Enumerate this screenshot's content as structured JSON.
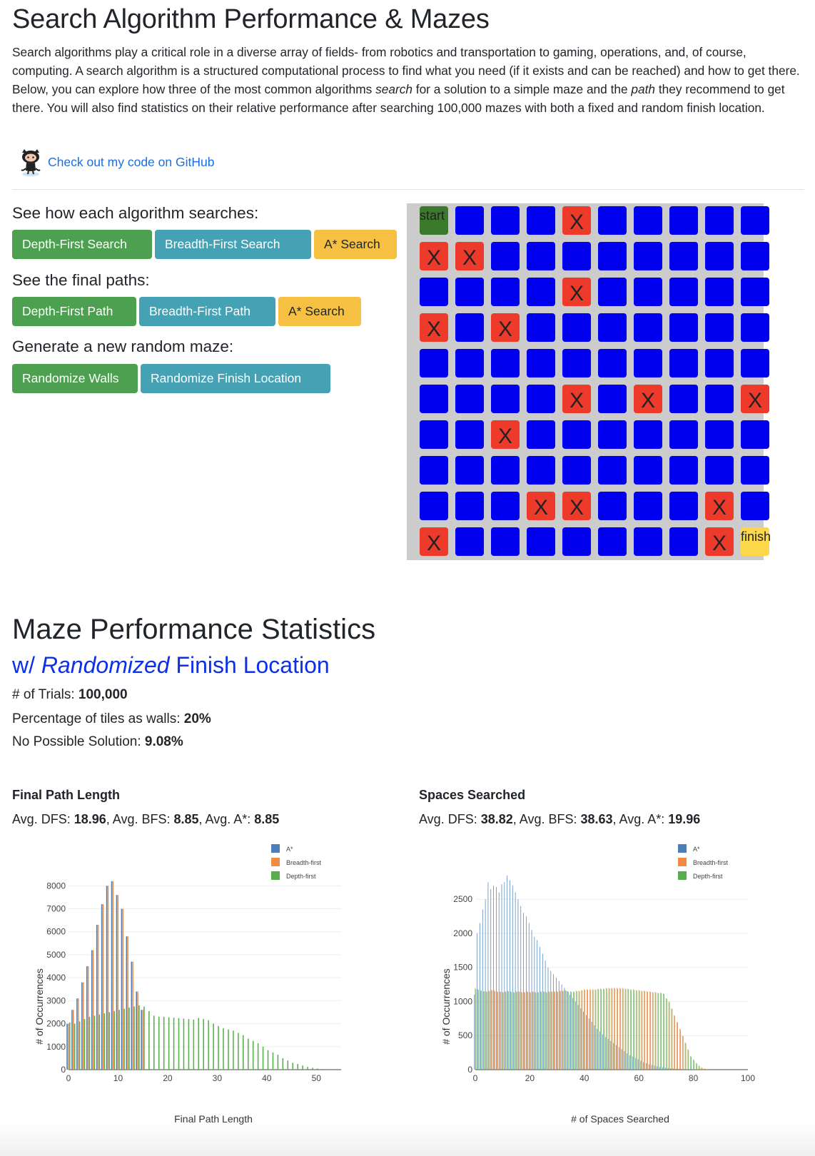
{
  "header": {
    "title": "Search Algorithm Performance & Mazes",
    "intro_1": "Search algorithms play a critical role in a diverse array of fields- from robotics and transportation to gaming, operations, and, of course, computing. A search algorithm is a structured computational process to find what you need (if it exists and can be reached) and how to get there. Below, you can explore how three of the most common algorithms ",
    "intro_em1": "search",
    "intro_2": " for a solution to a simple maze and the ",
    "intro_em2": "path",
    "intro_3": " they recommend to get there. You will also find statistics on their relative performance after searching 100,000 mazes with both a fixed and random finish location.",
    "github_link": "Check out my code on GitHub"
  },
  "controls": {
    "search_heading": "See how each algorithm searches:",
    "search_buttons": [
      "Depth-First Search",
      "Breadth-First Search",
      "A* Search"
    ],
    "path_heading": "See the final paths:",
    "path_buttons": [
      "Depth-First Path",
      "Breadth-First Path",
      "A* Search"
    ],
    "random_heading": "Generate a new random maze:",
    "random_buttons": [
      "Randomize Walls",
      "Randomize Finish Location"
    ]
  },
  "maze": {
    "start_label": "start",
    "finish_label": "finish",
    "wall_mark": "X",
    "grid": [
      "S...W.....",
      "WW........",
      "....W.....",
      "W.W.......",
      "..........",
      "....W.W..W",
      "..W.......",
      "..........",
      "...WW...W.",
      "W.......WF"
    ],
    "colors": {
      "open": "#0000ee",
      "wall": "#ee3a2b",
      "start": "#3a7a2a",
      "finish": "#fdd84a"
    }
  },
  "stats": {
    "heading": "Maze Performance Statistics",
    "sub_prefix": "w/ ",
    "sub_em": "Randomized",
    "sub_suffix": " Finish Location",
    "trials_label": "# of Trials: ",
    "trials_value": "100,000",
    "walls_label": "Percentage of tiles as walls: ",
    "walls_value": "20%",
    "nosol_label": "No Possible Solution: ",
    "nosol_value": "9.08%"
  },
  "charts": {
    "path": {
      "title": "Final Path Length",
      "avg_dfs_label": "Avg. DFS: ",
      "avg_dfs": "18.96",
      "avg_bfs_label": ", Avg. BFS: ",
      "avg_bfs": "8.85",
      "avg_astar_label": ", Avg. A*: ",
      "avg_astar": "8.85"
    },
    "spaces": {
      "title": "Spaces Searched",
      "avg_dfs_label": "Avg. DFS: ",
      "avg_dfs": "38.82",
      "avg_bfs_label": ", Avg. BFS: ",
      "avg_bfs": "38.63",
      "avg_astar_label": ", Avg. A*: ",
      "avg_astar": "19.96"
    }
  },
  "chart_data": [
    {
      "type": "bar",
      "xlabel": "Final Path Length",
      "ylabel": "# of Occurrences",
      "xlim": [
        0,
        55
      ],
      "ylim": [
        0,
        8600
      ],
      "xticks": [
        0,
        10,
        20,
        30,
        40,
        50
      ],
      "yticks": [
        0,
        1000,
        2000,
        3000,
        4000,
        5000,
        6000,
        7000,
        8000
      ],
      "legend_position": "top-right",
      "series": [
        {
          "name": "A*",
          "color": "#4c7fb8",
          "x": [
            0,
            1,
            2,
            3,
            4,
            5,
            6,
            7,
            8,
            9,
            10,
            11,
            12,
            13,
            14,
            15
          ],
          "values": [
            2000,
            2600,
            3100,
            3800,
            4500,
            5200,
            6300,
            7200,
            8000,
            8200,
            7600,
            7000,
            5800,
            4700,
            3400,
            2600
          ]
        },
        {
          "name": "Breadth-first",
          "color": "#f28c45",
          "x": [
            0,
            1,
            2,
            3,
            4,
            5,
            6,
            7,
            8,
            9,
            10,
            11,
            12,
            13,
            14,
            15
          ],
          "values": [
            2000,
            2600,
            3100,
            3800,
            4500,
            5200,
            6300,
            7200,
            8000,
            8200,
            7600,
            7000,
            5800,
            4700,
            3400,
            2600
          ]
        },
        {
          "name": "Depth-first",
          "color": "#5aad4e",
          "x": [
            0,
            1,
            2,
            3,
            4,
            5,
            6,
            7,
            8,
            9,
            10,
            11,
            12,
            13,
            14,
            15,
            16,
            17,
            18,
            19,
            20,
            21,
            22,
            23,
            24,
            25,
            26,
            27,
            28,
            29,
            30,
            31,
            32,
            33,
            34,
            35,
            36,
            37,
            38,
            39,
            40,
            41,
            42,
            43,
            44,
            45,
            46,
            47,
            48,
            49,
            50,
            51,
            52
          ],
          "values": [
            2050,
            2000,
            2100,
            2200,
            2300,
            2350,
            2400,
            2450,
            2500,
            2550,
            2600,
            2650,
            2700,
            2750,
            2800,
            2750,
            2550,
            2350,
            2300,
            2300,
            2280,
            2260,
            2240,
            2220,
            2200,
            2180,
            2250,
            2200,
            2150,
            2000,
            1900,
            1800,
            1750,
            1700,
            1600,
            1500,
            1350,
            1250,
            1150,
            1000,
            850,
            750,
            650,
            500,
            400,
            300,
            250,
            180,
            120,
            80,
            50,
            30,
            20
          ]
        }
      ]
    },
    {
      "type": "bar",
      "xlabel": "# of Spaces Searched",
      "ylabel": "# of Occurrences",
      "xlim": [
        0,
        100
      ],
      "ylim": [
        0,
        2900
      ],
      "xticks": [
        0,
        20,
        40,
        60,
        80,
        100
      ],
      "yticks": [
        0,
        500,
        1000,
        1500,
        2000,
        2500
      ],
      "legend_position": "top-right",
      "series": [
        {
          "name": "A*",
          "color": "#4c7fb8",
          "x": [
            0,
            1,
            2,
            3,
            4,
            5,
            6,
            7,
            8,
            9,
            10,
            11,
            12,
            13,
            14,
            15,
            16,
            17,
            18,
            19,
            20,
            21,
            22,
            23,
            24,
            25,
            26,
            27,
            28,
            29,
            30,
            31,
            32,
            33,
            34,
            35,
            36,
            37,
            38,
            39,
            40,
            41,
            42,
            43,
            44,
            45,
            46,
            47,
            48,
            49,
            50,
            51,
            52,
            53,
            54,
            55,
            56,
            57,
            58,
            59,
            60,
            61,
            62,
            63,
            64,
            65,
            66,
            67,
            68,
            69,
            70,
            71,
            72,
            73,
            74,
            75,
            76,
            77,
            78,
            79,
            80,
            81,
            82,
            83,
            84,
            85,
            86
          ],
          "values": [
            1100,
            2000,
            2150,
            2350,
            2500,
            2750,
            2650,
            2700,
            2680,
            2600,
            2720,
            2750,
            2850,
            2780,
            2700,
            2600,
            2500,
            2400,
            2300,
            2250,
            2150,
            2050,
            1950,
            1900,
            1800,
            1700,
            1600,
            1500,
            1450,
            1400,
            1350,
            1300,
            1250,
            1200,
            1150,
            1100,
            1050,
            1000,
            950,
            900,
            850,
            800,
            750,
            700,
            650,
            600,
            560,
            520,
            480,
            450,
            420,
            390,
            360,
            330,
            300,
            270,
            240,
            210,
            190,
            170,
            150,
            130,
            110,
            95,
            80,
            70,
            60,
            50,
            40,
            35,
            30,
            25,
            20,
            17,
            14,
            12,
            10,
            8,
            6,
            5,
            4,
            3,
            2,
            2,
            1,
            1,
            0
          ]
        },
        {
          "name": "Breadth-first",
          "color": "#f28c45",
          "x": [
            0,
            1,
            2,
            3,
            4,
            5,
            6,
            7,
            8,
            9,
            10,
            11,
            12,
            13,
            14,
            15,
            16,
            17,
            18,
            19,
            20,
            21,
            22,
            23,
            24,
            25,
            26,
            27,
            28,
            29,
            30,
            31,
            32,
            33,
            34,
            35,
            36,
            37,
            38,
            39,
            40,
            41,
            42,
            43,
            44,
            45,
            46,
            47,
            48,
            49,
            50,
            51,
            52,
            53,
            54,
            55,
            56,
            57,
            58,
            59,
            60,
            61,
            62,
            63,
            64,
            65,
            66,
            67,
            68,
            69,
            70,
            71,
            72,
            73,
            74,
            75,
            76,
            77,
            78,
            79,
            80,
            81,
            82,
            83,
            84,
            85,
            86
          ],
          "values": [
            1200,
            1180,
            1160,
            1150,
            1150,
            1160,
            1170,
            1160,
            1150,
            1150,
            1140,
            1150,
            1160,
            1150,
            1140,
            1150,
            1150,
            1140,
            1140,
            1150,
            1140,
            1150,
            1140,
            1140,
            1150,
            1150,
            1140,
            1150,
            1150,
            1150,
            1150,
            1160,
            1160,
            1170,
            1150,
            1150,
            1150,
            1160,
            1160,
            1170,
            1180,
            1180,
            1180,
            1180,
            1180,
            1190,
            1190,
            1190,
            1200,
            1200,
            1200,
            1200,
            1200,
            1200,
            1200,
            1190,
            1190,
            1180,
            1180,
            1170,
            1170,
            1160,
            1160,
            1150,
            1150,
            1140,
            1140,
            1130,
            1130,
            1120,
            1050,
            1000,
            900,
            800,
            700,
            600,
            500,
            400,
            300,
            200,
            150,
            100,
            60,
            30,
            15,
            8,
            3
          ]
        },
        {
          "name": "Depth-first",
          "color": "#5aad4e",
          "x": [
            0,
            1,
            2,
            3,
            4,
            5,
            6,
            7,
            8,
            9,
            10,
            11,
            12,
            13,
            14,
            15,
            16,
            17,
            18,
            19,
            20,
            21,
            22,
            23,
            24,
            25,
            26,
            27,
            28,
            29,
            30,
            31,
            32,
            33,
            34,
            35,
            36,
            37,
            38,
            39,
            40,
            41,
            42,
            43,
            44,
            45,
            46,
            47,
            48,
            49,
            50,
            51,
            52,
            53,
            54,
            55,
            56,
            57,
            58,
            59,
            60,
            61,
            62,
            63,
            64,
            65,
            66,
            67,
            68,
            69,
            70,
            71,
            72,
            73,
            74,
            75,
            76,
            77,
            78,
            79,
            80,
            81,
            82,
            83,
            84,
            85,
            86
          ],
          "values": [
            1180,
            1170,
            1160,
            1150,
            1140,
            1150,
            1160,
            1150,
            1140,
            1140,
            1130,
            1140,
            1150,
            1140,
            1130,
            1140,
            1140,
            1130,
            1130,
            1140,
            1130,
            1140,
            1130,
            1130,
            1140,
            1140,
            1130,
            1140,
            1140,
            1140,
            1140,
            1150,
            1150,
            1160,
            1140,
            1140,
            1140,
            1150,
            1150,
            1160,
            1170,
            1170,
            1170,
            1170,
            1170,
            1180,
            1180,
            1180,
            1190,
            1190,
            1190,
            1190,
            1190,
            1190,
            1190,
            1180,
            1180,
            1170,
            1170,
            1160,
            1160,
            1150,
            1150,
            1140,
            1140,
            1130,
            1130,
            1120,
            1120,
            1110,
            1040,
            990,
            890,
            790,
            690,
            590,
            490,
            390,
            290,
            190,
            140,
            90,
            55,
            28,
            14,
            7,
            3
          ]
        }
      ]
    }
  ]
}
